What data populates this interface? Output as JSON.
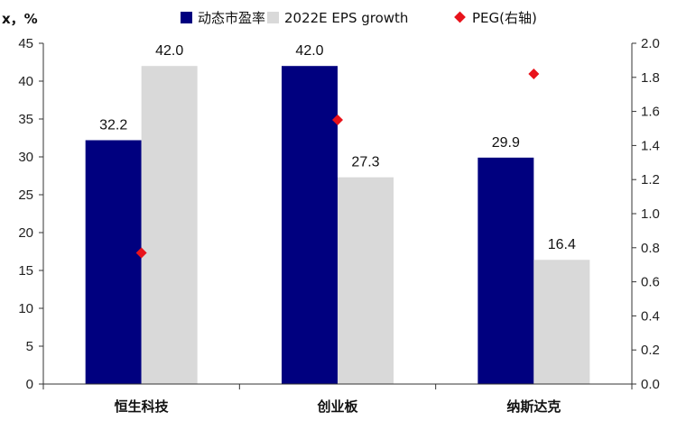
{
  "chart_data": {
    "type": "bar",
    "title": "",
    "ylabel": "x，%",
    "categories": [
      "恒生科技",
      "创业板",
      "纳斯达克"
    ],
    "series": [
      {
        "name": "动态市盈率",
        "values": [
          32.2,
          42.0,
          29.9
        ],
        "color": "#00007F",
        "axis": "left",
        "mark": "bar"
      },
      {
        "name": "2022E EPS growth",
        "values": [
          42.0,
          27.3,
          16.4
        ],
        "color": "#D9D9D9",
        "axis": "left",
        "mark": "bar"
      },
      {
        "name": "PEG(右轴)",
        "values": [
          0.77,
          1.55,
          1.82
        ],
        "color": "#E8131B",
        "axis": "right",
        "mark": "diamond"
      }
    ],
    "data_labels": [
      [
        "32.2",
        "42.0",
        "29.9"
      ],
      [
        "42.0",
        "27.3",
        "16.4"
      ]
    ],
    "y_left": {
      "min": 0,
      "max": 45,
      "step": 5,
      "ticks": [
        "0",
        "5",
        "10",
        "15",
        "20",
        "25",
        "30",
        "35",
        "40",
        "45"
      ]
    },
    "y_right": {
      "min": 0,
      "max": 2.0,
      "step": 0.2,
      "ticks": [
        "0.0",
        "0.2",
        "0.4",
        "0.6",
        "0.8",
        "1.0",
        "1.2",
        "1.4",
        "1.6",
        "1.8",
        "2.0"
      ]
    },
    "legend_position": "top",
    "grid": false
  }
}
